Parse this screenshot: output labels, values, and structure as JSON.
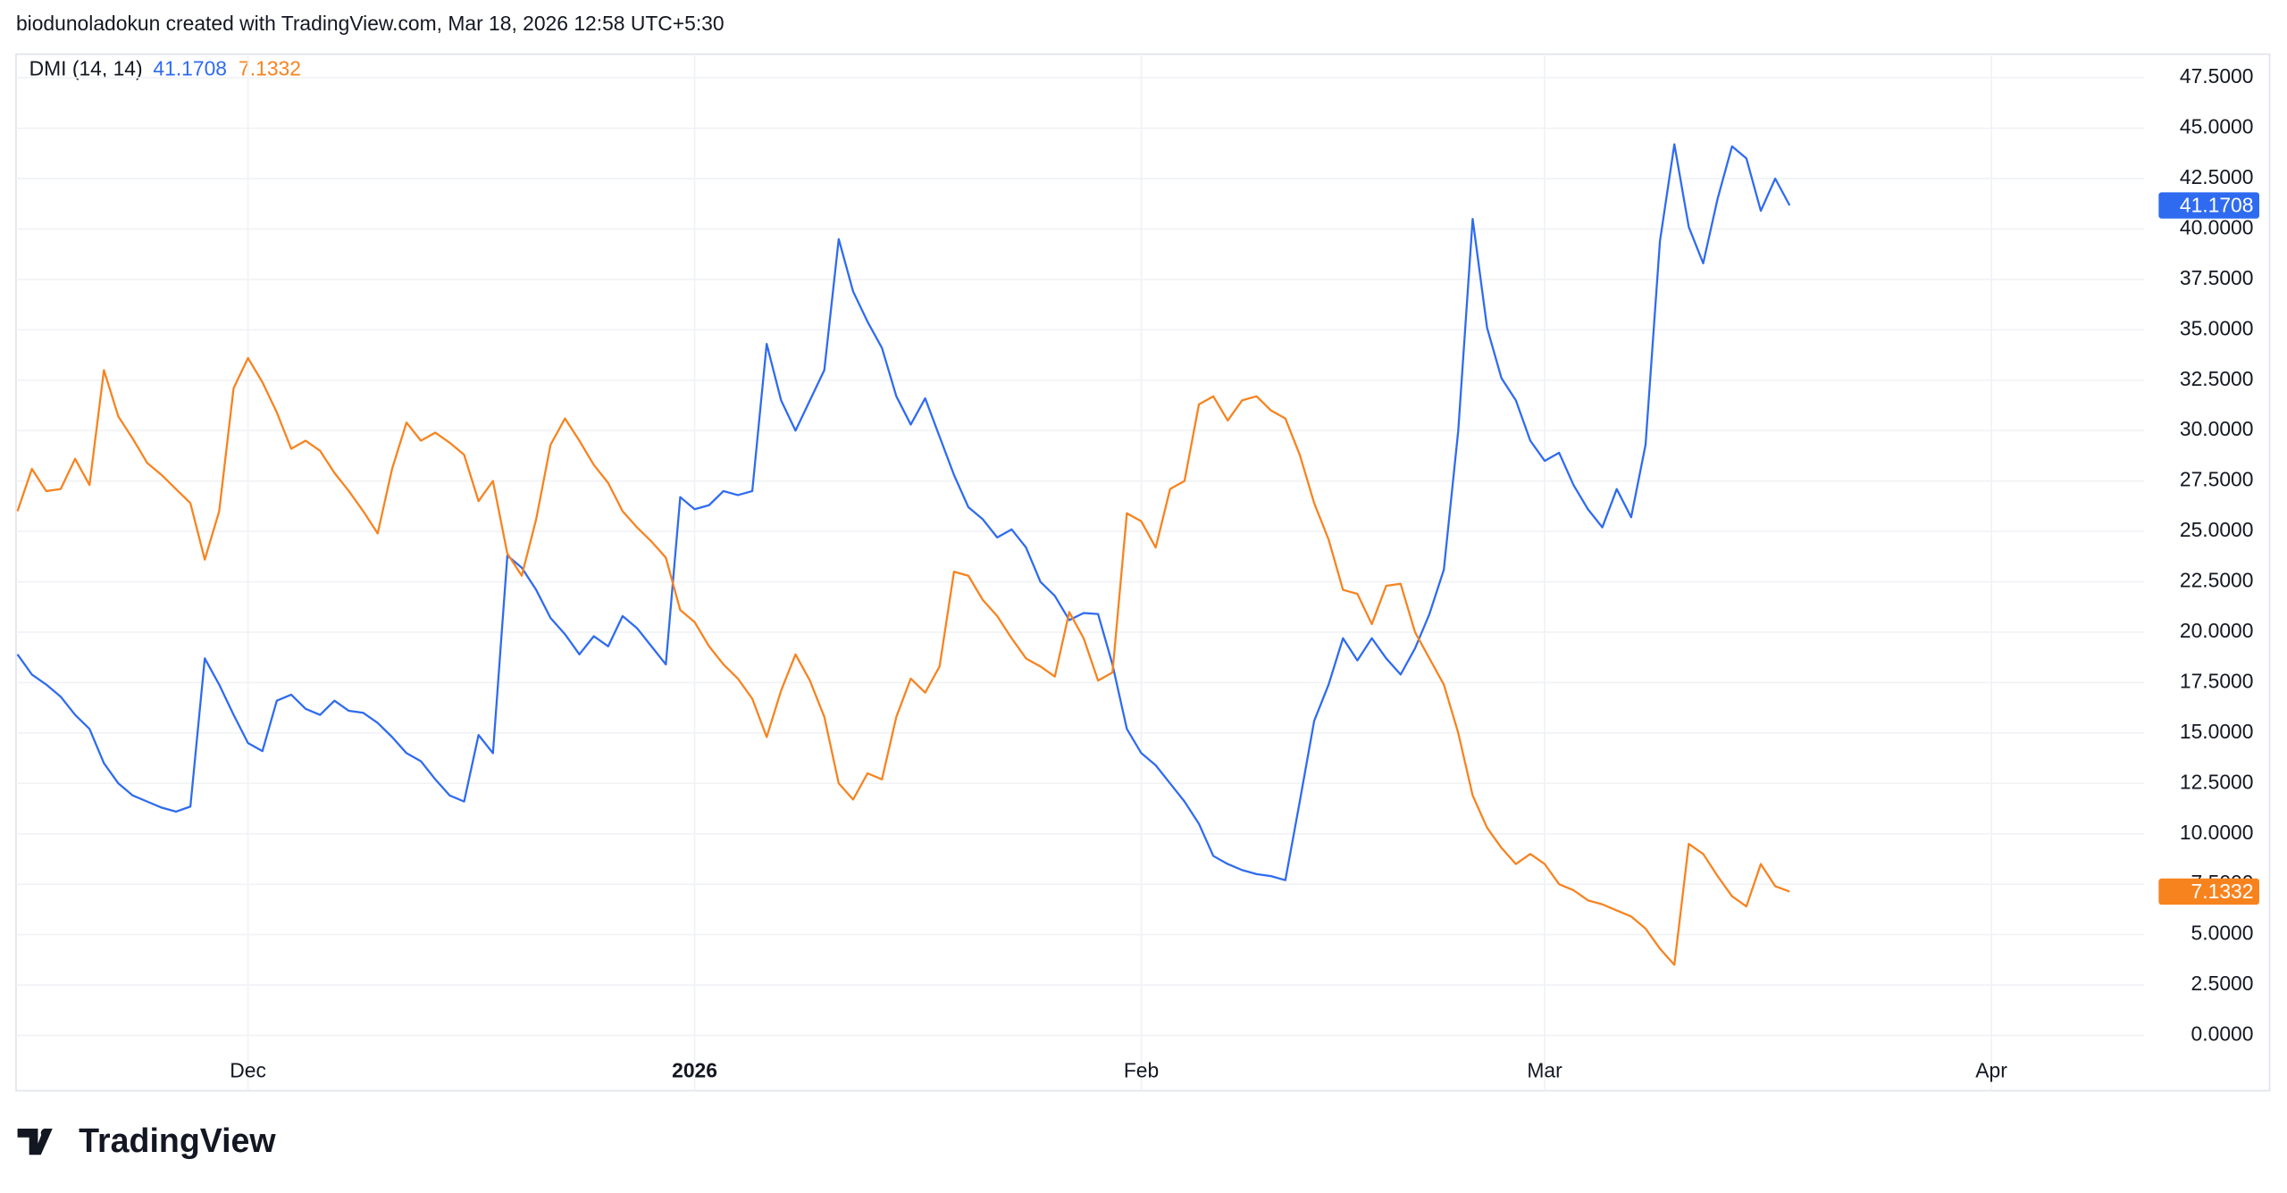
{
  "header": {
    "attribution": "biodunoladokun created with TradingView.com, Mar 18, 2026 12:58 UTC+5:30"
  },
  "logo": "TradingView",
  "chart_data": {
    "type": "line",
    "title": "DMI (14, 14)",
    "xlim": [
      -0.1,
      147.6
    ],
    "xticks": [
      {
        "value": 16,
        "label": "Dec"
      },
      {
        "value": 47,
        "label": "2026"
      },
      {
        "value": 78,
        "label": "Feb"
      },
      {
        "value": 106,
        "label": "Mar"
      },
      {
        "value": 137,
        "label": "Apr"
      }
    ],
    "ylim": [
      -0.72,
      48.6
    ],
    "yticks": [
      {
        "value": 0,
        "label": "0.0000"
      },
      {
        "value": 2.5,
        "label": "2.5000"
      },
      {
        "value": 5,
        "label": "5.0000"
      },
      {
        "value": 7.5,
        "label": "7.5000"
      },
      {
        "value": 10,
        "label": "10.0000"
      },
      {
        "value": 12.5,
        "label": "12.5000"
      },
      {
        "value": 15,
        "label": "15.0000"
      },
      {
        "value": 17.5,
        "label": "17.5000"
      },
      {
        "value": 20,
        "label": "20.0000"
      },
      {
        "value": 22.5,
        "label": "22.5000"
      },
      {
        "value": 25,
        "label": "25.0000"
      },
      {
        "value": 27.5,
        "label": "27.5000"
      },
      {
        "value": 30,
        "label": "30.0000"
      },
      {
        "value": 32.5,
        "label": "32.5000"
      },
      {
        "value": 35,
        "label": "35.0000"
      },
      {
        "value": 37.5,
        "label": "37.5000"
      },
      {
        "value": 40,
        "label": "40.0000"
      },
      {
        "value": 42.5,
        "label": "42.5000"
      },
      {
        "value": 45,
        "label": "45.0000"
      },
      {
        "value": 47.5,
        "label": "47.5000"
      }
    ],
    "grid": true,
    "series": [
      {
        "color": "#2f6bf0",
        "values": [
          18.9,
          17.9,
          17.4,
          16.8,
          15.9,
          15.2,
          13.5,
          12.5,
          11.9,
          11.6,
          11.3,
          11.1,
          11.35,
          18.7,
          17.4,
          15.9,
          14.5,
          14.1,
          16.6,
          16.9,
          16.2,
          15.9,
          16.6,
          16.1,
          16.0,
          15.5,
          14.8,
          14.0,
          13.6,
          12.7,
          11.9,
          11.6,
          14.9,
          14.0,
          23.8,
          23.2,
          22.1,
          20.7,
          19.9,
          18.9,
          19.8,
          19.3,
          20.8,
          20.2,
          19.3,
          18.4,
          26.7,
          26.1,
          26.3,
          27.0,
          26.8,
          27.0,
          34.3,
          31.5,
          30.0,
          31.5,
          33.0,
          39.5,
          36.9,
          35.4,
          34.1,
          31.7,
          30.3,
          31.6,
          29.7,
          27.8,
          26.2,
          25.6,
          24.7,
          25.1,
          24.2,
          22.5,
          21.8,
          20.6,
          20.95,
          20.9,
          18.4,
          15.2,
          14.0,
          13.4,
          12.5,
          11.6,
          10.5,
          8.9,
          8.5,
          8.2,
          8.0,
          7.9,
          7.7,
          11.6,
          15.6,
          17.4,
          19.7,
          18.6,
          19.7,
          18.7,
          17.9,
          19.2,
          20.9,
          23.1,
          30.0,
          40.5,
          35.1,
          32.6,
          31.5,
          29.5,
          28.5,
          28.9,
          27.3,
          26.1,
          25.2,
          27.1,
          25.7,
          29.3,
          39.4,
          44.2,
          40.1,
          38.3,
          41.5,
          44.1,
          43.5,
          40.9,
          42.5,
          41.1708
        ]
      },
      {
        "color": "#f7831f",
        "values": [
          26.0,
          28.1,
          27.0,
          27.1,
          28.6,
          27.3,
          33.0,
          30.7,
          29.6,
          28.4,
          27.8,
          27.1,
          26.4,
          23.6,
          26.0,
          32.1,
          33.6,
          32.4,
          30.9,
          29.1,
          29.5,
          29.0,
          27.9,
          27.0,
          26.0,
          24.9,
          28.1,
          30.4,
          29.5,
          29.9,
          29.4,
          28.8,
          26.5,
          27.5,
          23.9,
          22.8,
          25.6,
          29.3,
          30.6,
          29.5,
          28.3,
          27.4,
          26.0,
          25.2,
          24.5,
          23.7,
          21.1,
          20.5,
          19.3,
          18.4,
          17.7,
          16.7,
          14.8,
          17.1,
          18.9,
          17.6,
          15.8,
          12.5,
          11.7,
          13.0,
          12.7,
          15.8,
          17.7,
          17.0,
          18.3,
          23.0,
          22.8,
          21.6,
          20.8,
          19.7,
          18.7,
          18.3,
          17.8,
          21.0,
          19.7,
          17.6,
          18.0,
          25.9,
          25.5,
          24.2,
          27.1,
          27.5,
          31.3,
          31.7,
          30.5,
          31.5,
          31.7,
          31.0,
          30.6,
          28.8,
          26.4,
          24.6,
          22.1,
          21.9,
          20.4,
          22.3,
          22.4,
          20.0,
          18.7,
          17.4,
          15.0,
          11.9,
          10.3,
          9.3,
          8.5,
          9.0,
          8.5,
          7.5,
          7.2,
          6.7,
          6.5,
          6.2,
          5.9,
          5.3,
          4.3,
          3.5,
          9.5,
          9.0,
          7.9,
          6.9,
          6.4,
          8.5,
          7.4,
          7.1332
        ]
      }
    ]
  }
}
